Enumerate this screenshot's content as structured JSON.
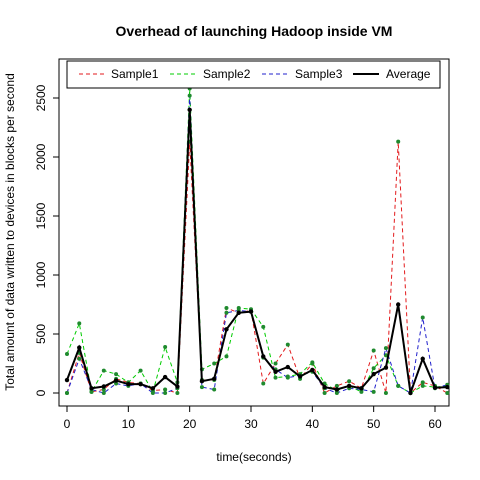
{
  "chart_data": {
    "type": "line",
    "title": "Overhead of launching Hadoop inside VM",
    "xlabel": "time(seconds)",
    "ylabel": "Total amount of data written to devices in blocks per second",
    "xlim": [
      0,
      62
    ],
    "ylim": [
      0,
      2500
    ],
    "x_ticks": [
      0,
      10,
      20,
      30,
      40,
      50,
      60
    ],
    "y_ticks": [
      0,
      500,
      1000,
      1500,
      2000,
      2500
    ],
    "grid": false,
    "legend_position": "top",
    "x": [
      0,
      2,
      4,
      6,
      8,
      10,
      12,
      14,
      16,
      18,
      20,
      22,
      24,
      26,
      28,
      30,
      32,
      34,
      36,
      38,
      40,
      42,
      44,
      46,
      48,
      50,
      52,
      54,
      56,
      58,
      60,
      62
    ],
    "series": [
      {
        "name": "Sample1",
        "color": "#e31a1c",
        "dash": "4,3",
        "width": 1,
        "values": [
          0,
          340,
          10,
          30,
          120,
          90,
          80,
          20,
          30,
          0,
          2130,
          110,
          110,
          720,
          680,
          700,
          80,
          250,
          410,
          120,
          250,
          0,
          60,
          100,
          40,
          360,
          0,
          2130,
          0,
          90,
          60,
          0
        ]
      },
      {
        "name": "Sample2",
        "color": "#00cc00",
        "dash": "4,3",
        "width": 1,
        "values": [
          330,
          590,
          10,
          190,
          160,
          90,
          190,
          10,
          390,
          90,
          2580,
          200,
          250,
          310,
          720,
          710,
          560,
          130,
          140,
          160,
          260,
          80,
          20,
          60,
          10,
          210,
          320,
          60,
          0,
          60,
          50,
          60
        ]
      },
      {
        "name": "Sample3",
        "color": "#2020cc",
        "dash": "4,3",
        "width": 1,
        "values": [
          0,
          290,
          30,
          0,
          80,
          60,
          80,
          0,
          0,
          40,
          2520,
          50,
          30,
          680,
          700,
          690,
          300,
          200,
          130,
          150,
          180,
          40,
          0,
          40,
          30,
          10,
          380,
          60,
          0,
          640,
          40,
          70
        ]
      },
      {
        "name": "Average",
        "color": "#000000",
        "dash": "",
        "width": 2,
        "values": [
          110,
          385,
          40,
          55,
          105,
          75,
          75,
          40,
          135,
          55,
          2400,
          100,
          120,
          540,
          680,
          690,
          310,
          180,
          220,
          140,
          195,
          50,
          30,
          60,
          40,
          160,
          215,
          750,
          0,
          290,
          45,
          50
        ]
      }
    ],
    "point_colors": [
      "#1f8a2e",
      "#1f8a2e",
      "#1f8a2e",
      "#000000"
    ]
  }
}
